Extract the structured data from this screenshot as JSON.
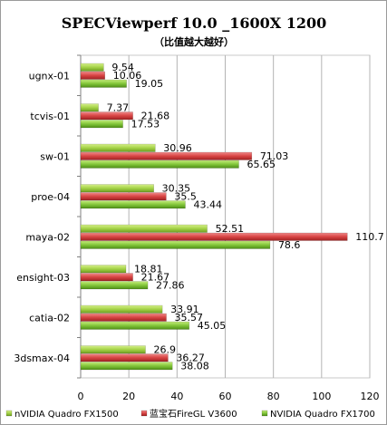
{
  "chart_data": {
    "type": "bar",
    "orientation": "horizontal",
    "title": "SPECViewperf 10.0 _1600X 1200",
    "subtitle": "（比值越大越好）",
    "categories": [
      "ugnx-01",
      "tcvis-01",
      "sw-01",
      "proe-04",
      "maya-02",
      "ensight-03",
      "catia-02",
      "3dsmax-04"
    ],
    "series": [
      {
        "name": "nVIDIA Quadro FX1500",
        "color": "#9ccc3c",
        "values": [
          9.54,
          7.37,
          30.96,
          30.35,
          52.51,
          18.81,
          33.91,
          26.9
        ]
      },
      {
        "name": "蓝宝石FireGL V3600",
        "color": "#d84a4a",
        "values": [
          10.06,
          21.68,
          71.03,
          35.5,
          110.7,
          21.67,
          35.57,
          36.27
        ]
      },
      {
        "name": "NVIDIA Quadro FX1700",
        "color": "#7cc23a",
        "values": [
          19.05,
          17.53,
          65.65,
          43.44,
          78.6,
          27.86,
          45.05,
          38.08
        ]
      }
    ],
    "xlim": [
      0,
      120
    ],
    "xticks": [
      "0",
      "20",
      "40",
      "60",
      "80",
      "100",
      "120"
    ],
    "grid": true,
    "legend_position": "bottom"
  }
}
